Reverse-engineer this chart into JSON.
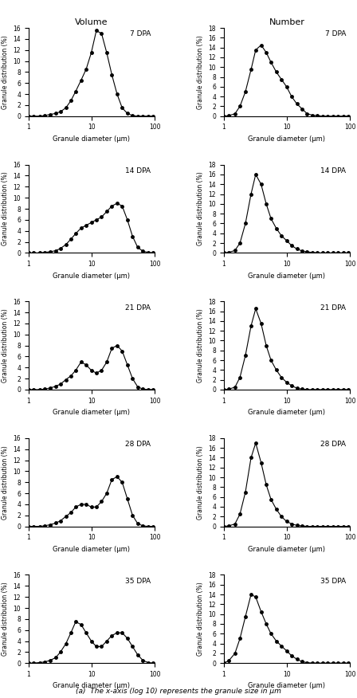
{
  "col_titles": [
    "Volume",
    "Number"
  ],
  "row_labels": [
    "7 DPA",
    "14 DPA",
    "21 DPA",
    "28 DPA",
    "35 DPA"
  ],
  "xlabel": "Granule diameter (μm)",
  "ylabel": "Granule distribution (%)",
  "caption": "(a)  The x-axis (log 10) represents the granule size in μm",
  "vol_ylim": [
    0,
    16
  ],
  "num_ylim": [
    0,
    18
  ],
  "vol_yticks": [
    0,
    2,
    4,
    6,
    8,
    10,
    12,
    14,
    16
  ],
  "num_yticks": [
    0,
    2,
    4,
    6,
    8,
    10,
    12,
    14,
    16,
    18
  ],
  "xlim_log": [
    1,
    100
  ],
  "xticks": [
    1,
    10,
    100
  ],
  "volume_data": {
    "7DPA": {
      "x": [
        1.0,
        1.2,
        1.5,
        1.8,
        2.2,
        2.7,
        3.2,
        3.9,
        4.7,
        5.6,
        6.8,
        8.2,
        9.9,
        11.9,
        14.4,
        17.4,
        21.0,
        25.4,
        30.6,
        37.0,
        44.7,
        54.0,
        65.2,
        78.7,
        95.0
      ],
      "y": [
        0.0,
        0.0,
        0.0,
        0.1,
        0.3,
        0.5,
        0.8,
        1.5,
        2.8,
        4.5,
        6.5,
        8.5,
        11.5,
        15.5,
        15.0,
        11.5,
        7.5,
        4.0,
        1.5,
        0.5,
        0.1,
        0.0,
        0.0,
        0.0,
        0.0
      ]
    },
    "14DPA": {
      "x": [
        1.0,
        1.2,
        1.5,
        1.8,
        2.2,
        2.7,
        3.2,
        3.9,
        4.7,
        5.6,
        6.8,
        8.2,
        9.9,
        11.9,
        14.4,
        17.4,
        21.0,
        25.4,
        30.6,
        37.0,
        44.7,
        54.0,
        65.2,
        78.7,
        95.0
      ],
      "y": [
        0.0,
        0.0,
        0.0,
        0.1,
        0.2,
        0.4,
        0.8,
        1.5,
        2.5,
        3.5,
        4.5,
        5.0,
        5.5,
        6.0,
        6.5,
        7.5,
        8.5,
        9.0,
        8.5,
        6.0,
        3.0,
        1.0,
        0.3,
        0.1,
        0.0
      ]
    },
    "21DPA": {
      "x": [
        1.0,
        1.2,
        1.5,
        1.8,
        2.2,
        2.7,
        3.2,
        3.9,
        4.7,
        5.6,
        6.8,
        8.2,
        9.9,
        11.9,
        14.4,
        17.4,
        21.0,
        25.4,
        30.6,
        37.0,
        44.7,
        54.0,
        65.2,
        78.7,
        95.0
      ],
      "y": [
        0.0,
        0.0,
        0.0,
        0.1,
        0.3,
        0.6,
        1.0,
        1.8,
        2.5,
        3.5,
        5.0,
        4.5,
        3.5,
        3.0,
        3.5,
        5.0,
        7.5,
        8.0,
        7.0,
        4.5,
        2.0,
        0.5,
        0.1,
        0.0,
        0.0
      ]
    },
    "28DPA": {
      "x": [
        1.0,
        1.2,
        1.5,
        1.8,
        2.2,
        2.7,
        3.2,
        3.9,
        4.7,
        5.6,
        6.8,
        8.2,
        9.9,
        11.9,
        14.4,
        17.4,
        21.0,
        25.4,
        30.6,
        37.0,
        44.7,
        54.0,
        65.2,
        78.7,
        95.0
      ],
      "y": [
        0.0,
        0.0,
        0.0,
        0.1,
        0.3,
        0.6,
        1.0,
        1.8,
        2.5,
        3.5,
        4.0,
        4.0,
        3.5,
        3.5,
        4.5,
        6.0,
        8.5,
        9.0,
        8.0,
        5.0,
        2.0,
        0.5,
        0.1,
        0.0,
        0.0
      ]
    },
    "35DPA": {
      "x": [
        1.0,
        1.2,
        1.5,
        1.8,
        2.2,
        2.7,
        3.2,
        3.9,
        4.7,
        5.6,
        6.8,
        8.2,
        9.9,
        11.9,
        14.4,
        17.4,
        21.0,
        25.4,
        30.6,
        37.0,
        44.7,
        54.0,
        65.2,
        78.7,
        95.0
      ],
      "y": [
        0.0,
        0.0,
        0.1,
        0.2,
        0.5,
        1.0,
        2.0,
        3.5,
        5.5,
        7.5,
        7.0,
        5.5,
        4.0,
        3.0,
        3.0,
        4.0,
        5.0,
        5.5,
        5.5,
        4.5,
        3.0,
        1.5,
        0.5,
        0.1,
        0.0
      ]
    }
  },
  "number_data": {
    "7DPA": {
      "x": [
        1.0,
        1.2,
        1.5,
        1.8,
        2.2,
        2.7,
        3.2,
        3.9,
        4.7,
        5.6,
        6.8,
        8.2,
        9.9,
        11.9,
        14.4,
        17.4,
        21.0,
        25.4,
        30.6,
        37.0,
        44.7,
        54.0,
        65.2,
        78.7,
        95.0
      ],
      "y": [
        0.0,
        0.1,
        0.5,
        2.0,
        5.0,
        9.5,
        13.5,
        14.5,
        13.0,
        11.0,
        9.0,
        7.5,
        6.0,
        4.0,
        2.5,
        1.5,
        0.5,
        0.2,
        0.1,
        0.0,
        0.0,
        0.0,
        0.0,
        0.0,
        0.0
      ]
    },
    "14DPA": {
      "x": [
        1.0,
        1.2,
        1.5,
        1.8,
        2.2,
        2.7,
        3.2,
        3.9,
        4.7,
        5.6,
        6.8,
        8.2,
        9.9,
        11.9,
        14.4,
        17.4,
        21.0,
        25.4,
        30.6,
        37.0,
        44.7,
        54.0,
        65.2,
        78.7,
        95.0
      ],
      "y": [
        0.0,
        0.1,
        0.5,
        2.0,
        6.0,
        12.0,
        16.0,
        14.0,
        10.0,
        7.0,
        5.0,
        3.5,
        2.5,
        1.5,
        0.8,
        0.4,
        0.2,
        0.1,
        0.0,
        0.0,
        0.0,
        0.0,
        0.0,
        0.0,
        0.0
      ]
    },
    "21DPA": {
      "x": [
        1.0,
        1.2,
        1.5,
        1.8,
        2.2,
        2.7,
        3.2,
        3.9,
        4.7,
        5.6,
        6.8,
        8.2,
        9.9,
        11.9,
        14.4,
        17.4,
        21.0,
        25.4,
        30.6,
        37.0,
        44.7,
        54.0,
        65.2,
        78.7,
        95.0
      ],
      "y": [
        0.0,
        0.1,
        0.5,
        2.5,
        7.0,
        13.0,
        16.5,
        13.5,
        9.0,
        6.0,
        4.0,
        2.5,
        1.5,
        0.8,
        0.3,
        0.1,
        0.0,
        0.0,
        0.0,
        0.0,
        0.0,
        0.0,
        0.0,
        0.0,
        0.0
      ]
    },
    "28DPA": {
      "x": [
        1.0,
        1.2,
        1.5,
        1.8,
        2.2,
        2.7,
        3.2,
        3.9,
        4.7,
        5.6,
        6.8,
        8.2,
        9.9,
        11.9,
        14.4,
        17.4,
        21.0,
        25.4,
        30.6,
        37.0,
        44.7,
        54.0,
        65.2,
        78.7,
        95.0
      ],
      "y": [
        0.0,
        0.1,
        0.5,
        2.5,
        7.0,
        14.0,
        17.0,
        13.0,
        8.5,
        5.5,
        3.5,
        2.0,
        1.0,
        0.5,
        0.2,
        0.1,
        0.0,
        0.0,
        0.0,
        0.0,
        0.0,
        0.0,
        0.0,
        0.0,
        0.0
      ]
    },
    "35DPA": {
      "x": [
        1.0,
        1.2,
        1.5,
        1.8,
        2.2,
        2.7,
        3.2,
        3.9,
        4.7,
        5.6,
        6.8,
        8.2,
        9.9,
        11.9,
        14.4,
        17.4,
        21.0,
        25.4,
        30.6,
        37.0,
        44.7,
        54.0,
        65.2,
        78.7,
        95.0
      ],
      "y": [
        0.0,
        0.5,
        2.0,
        5.0,
        9.5,
        14.0,
        13.5,
        10.5,
        8.0,
        6.0,
        4.5,
        3.5,
        2.5,
        1.5,
        0.8,
        0.3,
        0.1,
        0.0,
        0.0,
        0.0,
        0.0,
        0.0,
        0.0,
        0.0,
        0.0
      ]
    }
  }
}
